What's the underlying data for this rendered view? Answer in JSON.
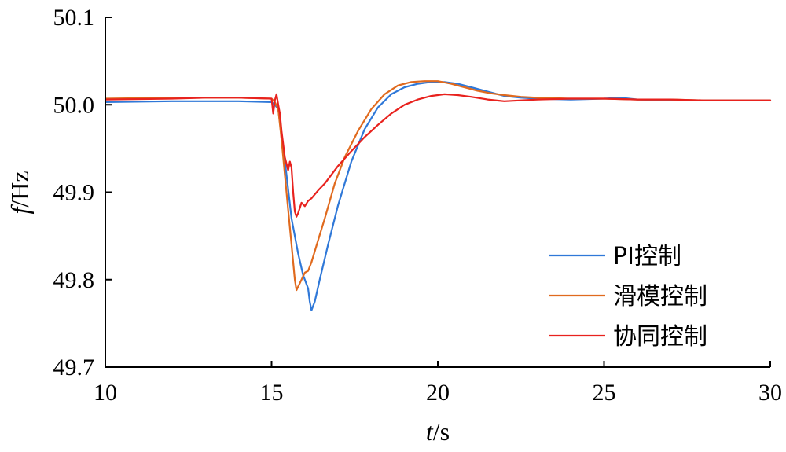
{
  "chart_data": {
    "type": "line",
    "xlabel": {
      "var": "t",
      "unit": "/s"
    },
    "ylabel": {
      "var": "f",
      "unit": "/Hz"
    },
    "xlim": [
      10,
      30
    ],
    "ylim": [
      49.7,
      50.1
    ],
    "xticks": [
      "10",
      "15",
      "20",
      "25",
      "30"
    ],
    "yticks": [
      "49.7",
      "49.8",
      "49.9",
      "50.0",
      "50.1"
    ],
    "grid": false,
    "legend_position": "bottom-right",
    "series": [
      {
        "name": "PI控制",
        "color": "#2f78d8",
        "x": [
          10.0,
          12.0,
          14.0,
          15.0,
          15.1,
          15.2,
          15.3,
          15.45,
          15.6,
          15.8,
          15.95,
          16.05,
          16.1,
          16.15,
          16.2,
          16.3,
          16.45,
          16.7,
          17.0,
          17.4,
          17.8,
          18.2,
          18.6,
          19.0,
          19.4,
          19.8,
          20.2,
          20.6,
          21.0,
          21.5,
          22.0,
          22.5,
          23.0,
          24.0,
          25.0,
          25.5,
          26.0,
          27.0,
          28.0,
          29.0,
          30.0
        ],
        "values": [
          50.003,
          50.004,
          50.004,
          50.003,
          50.0,
          49.995,
          49.965,
          49.92,
          49.87,
          49.83,
          49.805,
          49.795,
          49.79,
          49.775,
          49.765,
          49.775,
          49.8,
          49.84,
          49.885,
          49.935,
          49.972,
          49.997,
          50.012,
          50.02,
          50.024,
          50.026,
          50.026,
          50.024,
          50.02,
          50.015,
          50.01,
          50.008,
          50.007,
          50.006,
          50.007,
          50.008,
          50.006,
          50.005,
          50.005,
          50.005,
          50.005
        ]
      },
      {
        "name": "滑模控制",
        "color": "#e06a1e",
        "x": [
          10.0,
          12.0,
          14.0,
          15.0,
          15.1,
          15.2,
          15.3,
          15.4,
          15.5,
          15.6,
          15.7,
          15.75,
          15.8,
          15.9,
          16.0,
          16.1,
          16.2,
          16.4,
          16.6,
          16.9,
          17.2,
          17.6,
          18.0,
          18.4,
          18.8,
          19.2,
          19.6,
          20.0,
          20.4,
          20.8,
          21.2,
          21.6,
          22.0,
          22.5,
          23.0,
          24.0,
          25.0,
          26.0,
          27.0,
          28.0,
          29.0,
          30.0
        ],
        "values": [
          50.007,
          50.008,
          50.008,
          50.007,
          50.003,
          49.995,
          49.96,
          49.92,
          49.88,
          49.84,
          49.8,
          49.788,
          49.792,
          49.8,
          49.808,
          49.81,
          49.82,
          49.845,
          49.87,
          49.91,
          49.94,
          49.97,
          49.995,
          50.012,
          50.022,
          50.026,
          50.027,
          50.027,
          50.024,
          50.02,
          50.016,
          50.013,
          50.011,
          50.009,
          50.008,
          50.007,
          50.007,
          50.006,
          50.006,
          50.005,
          50.005,
          50.005
        ]
      },
      {
        "name": "协同控制",
        "color": "#e8221e",
        "x": [
          10.0,
          12.0,
          13.0,
          14.0,
          15.0,
          15.05,
          15.1,
          15.15,
          15.2,
          15.25,
          15.3,
          15.4,
          15.5,
          15.55,
          15.6,
          15.65,
          15.7,
          15.75,
          15.8,
          15.9,
          16.0,
          16.1,
          16.2,
          16.4,
          16.6,
          16.8,
          17.0,
          17.4,
          17.8,
          18.2,
          18.6,
          19.0,
          19.4,
          19.8,
          20.2,
          20.6,
          21.0,
          21.5,
          22.0,
          22.5,
          23.0,
          24.0,
          25.0,
          26.0,
          27.0,
          28.0,
          29.0,
          30.0
        ],
        "values": [
          50.006,
          50.007,
          50.008,
          50.008,
          50.007,
          49.99,
          50.005,
          50.012,
          50.0,
          49.99,
          49.97,
          49.94,
          49.925,
          49.935,
          49.928,
          49.9,
          49.878,
          49.872,
          49.876,
          49.888,
          49.884,
          49.89,
          49.893,
          49.902,
          49.91,
          49.92,
          49.93,
          49.947,
          49.963,
          49.977,
          49.99,
          50.0,
          50.006,
          50.01,
          50.012,
          50.011,
          50.009,
          50.006,
          50.004,
          50.005,
          50.006,
          50.007,
          50.007,
          50.006,
          50.006,
          50.005,
          50.005,
          50.005
        ]
      }
    ]
  }
}
